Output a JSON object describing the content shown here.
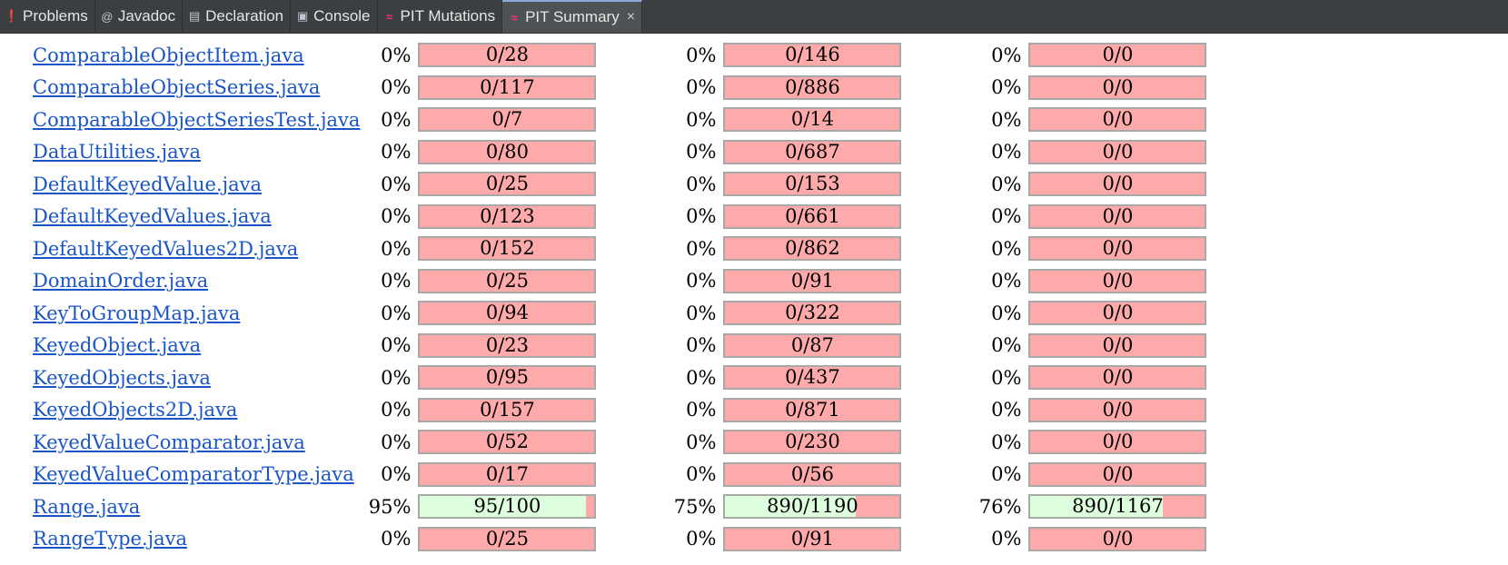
{
  "tabs": [
    {
      "label": "Problems",
      "icon": "problems-icon",
      "active": false
    },
    {
      "label": "Javadoc",
      "icon": "javadoc-icon",
      "active": false
    },
    {
      "label": "Declaration",
      "icon": "declaration-icon",
      "active": false
    },
    {
      "label": "Console",
      "icon": "console-icon",
      "active": false
    },
    {
      "label": "PIT Mutations",
      "icon": "pit-icon",
      "active": false
    },
    {
      "label": "PIT Summary",
      "icon": "pit-icon",
      "active": true,
      "closable": true
    }
  ],
  "colors": {
    "bar_bg_uncovered": "#ffaaaa",
    "bar_fill_covered": "#ddffdd",
    "link": "#1a55c8",
    "pit_icon": "#ff2d7a"
  },
  "rows": [
    {
      "file": "ComparableObjectItem.java",
      "line": {
        "pct": "0%",
        "ratio": "0/28",
        "fill": 0
      },
      "mutation": {
        "pct": "0%",
        "ratio": "0/146",
        "fill": 0
      },
      "strength": {
        "pct": "0%",
        "ratio": "0/0",
        "fill": 0
      }
    },
    {
      "file": "ComparableObjectSeries.java",
      "line": {
        "pct": "0%",
        "ratio": "0/117",
        "fill": 0
      },
      "mutation": {
        "pct": "0%",
        "ratio": "0/886",
        "fill": 0
      },
      "strength": {
        "pct": "0%",
        "ratio": "0/0",
        "fill": 0
      }
    },
    {
      "file": "ComparableObjectSeriesTest.java",
      "line": {
        "pct": "0%",
        "ratio": "0/7",
        "fill": 0
      },
      "mutation": {
        "pct": "0%",
        "ratio": "0/14",
        "fill": 0
      },
      "strength": {
        "pct": "0%",
        "ratio": "0/0",
        "fill": 0
      }
    },
    {
      "file": "DataUtilities.java",
      "line": {
        "pct": "0%",
        "ratio": "0/80",
        "fill": 0
      },
      "mutation": {
        "pct": "0%",
        "ratio": "0/687",
        "fill": 0
      },
      "strength": {
        "pct": "0%",
        "ratio": "0/0",
        "fill": 0
      }
    },
    {
      "file": "DefaultKeyedValue.java",
      "line": {
        "pct": "0%",
        "ratio": "0/25",
        "fill": 0
      },
      "mutation": {
        "pct": "0%",
        "ratio": "0/153",
        "fill": 0
      },
      "strength": {
        "pct": "0%",
        "ratio": "0/0",
        "fill": 0
      }
    },
    {
      "file": "DefaultKeyedValues.java",
      "line": {
        "pct": "0%",
        "ratio": "0/123",
        "fill": 0
      },
      "mutation": {
        "pct": "0%",
        "ratio": "0/661",
        "fill": 0
      },
      "strength": {
        "pct": "0%",
        "ratio": "0/0",
        "fill": 0
      }
    },
    {
      "file": "DefaultKeyedValues2D.java",
      "line": {
        "pct": "0%",
        "ratio": "0/152",
        "fill": 0
      },
      "mutation": {
        "pct": "0%",
        "ratio": "0/862",
        "fill": 0
      },
      "strength": {
        "pct": "0%",
        "ratio": "0/0",
        "fill": 0
      }
    },
    {
      "file": "DomainOrder.java",
      "line": {
        "pct": "0%",
        "ratio": "0/25",
        "fill": 0
      },
      "mutation": {
        "pct": "0%",
        "ratio": "0/91",
        "fill": 0
      },
      "strength": {
        "pct": "0%",
        "ratio": "0/0",
        "fill": 0
      }
    },
    {
      "file": "KeyToGroupMap.java",
      "line": {
        "pct": "0%",
        "ratio": "0/94",
        "fill": 0
      },
      "mutation": {
        "pct": "0%",
        "ratio": "0/322",
        "fill": 0
      },
      "strength": {
        "pct": "0%",
        "ratio": "0/0",
        "fill": 0
      }
    },
    {
      "file": "KeyedObject.java",
      "line": {
        "pct": "0%",
        "ratio": "0/23",
        "fill": 0
      },
      "mutation": {
        "pct": "0%",
        "ratio": "0/87",
        "fill": 0
      },
      "strength": {
        "pct": "0%",
        "ratio": "0/0",
        "fill": 0
      }
    },
    {
      "file": "KeyedObjects.java",
      "line": {
        "pct": "0%",
        "ratio": "0/95",
        "fill": 0
      },
      "mutation": {
        "pct": "0%",
        "ratio": "0/437",
        "fill": 0
      },
      "strength": {
        "pct": "0%",
        "ratio": "0/0",
        "fill": 0
      }
    },
    {
      "file": "KeyedObjects2D.java",
      "line": {
        "pct": "0%",
        "ratio": "0/157",
        "fill": 0
      },
      "mutation": {
        "pct": "0%",
        "ratio": "0/871",
        "fill": 0
      },
      "strength": {
        "pct": "0%",
        "ratio": "0/0",
        "fill": 0
      }
    },
    {
      "file": "KeyedValueComparator.java",
      "line": {
        "pct": "0%",
        "ratio": "0/52",
        "fill": 0
      },
      "mutation": {
        "pct": "0%",
        "ratio": "0/230",
        "fill": 0
      },
      "strength": {
        "pct": "0%",
        "ratio": "0/0",
        "fill": 0
      }
    },
    {
      "file": "KeyedValueComparatorType.java",
      "line": {
        "pct": "0%",
        "ratio": "0/17",
        "fill": 0
      },
      "mutation": {
        "pct": "0%",
        "ratio": "0/56",
        "fill": 0
      },
      "strength": {
        "pct": "0%",
        "ratio": "0/0",
        "fill": 0
      }
    },
    {
      "file": "Range.java",
      "line": {
        "pct": "95%",
        "ratio": "95/100",
        "fill": 0.95
      },
      "mutation": {
        "pct": "75%",
        "ratio": "890/1190",
        "fill": 0.75
      },
      "strength": {
        "pct": "76%",
        "ratio": "890/1167",
        "fill": 0.76
      }
    },
    {
      "file": "RangeType.java",
      "line": {
        "pct": "0%",
        "ratio": "0/25",
        "fill": 0
      },
      "mutation": {
        "pct": "0%",
        "ratio": "0/91",
        "fill": 0
      },
      "strength": {
        "pct": "0%",
        "ratio": "0/0",
        "fill": 0
      }
    }
  ]
}
